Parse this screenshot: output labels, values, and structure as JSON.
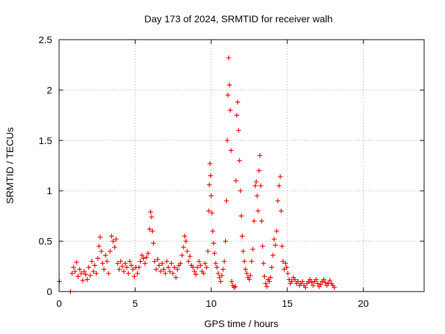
{
  "chart_data": {
    "type": "scatter",
    "title": "Day 173 of 2024, SRMTID for receiver walh",
    "xlabel": "GPS time / hours",
    "ylabel": "SRMTID / TECUs",
    "xlim": [
      0,
      24
    ],
    "ylim": [
      0,
      2.5
    ],
    "xticks": [
      0,
      5,
      10,
      15,
      20
    ],
    "xtick_labels": [
      "0",
      "5",
      "10",
      "15",
      "20"
    ],
    "yticks": [
      0,
      0.5,
      1,
      1.5,
      2,
      2.5
    ],
    "ytick_labels": [
      "0",
      "0.5",
      "1",
      "1.5",
      "2",
      "2.5"
    ],
    "grid": true,
    "marker": "plus",
    "color": "#ff0000",
    "series": [
      {
        "name": "SRMTID",
        "points": [
          [
            0.02,
            0.1
          ],
          [
            0.75,
            0.0
          ],
          [
            0.85,
            0.18
          ],
          [
            0.95,
            0.24
          ],
          [
            1.05,
            0.2
          ],
          [
            1.15,
            0.29
          ],
          [
            1.25,
            0.15
          ],
          [
            1.35,
            0.22
          ],
          [
            1.45,
            0.18
          ],
          [
            1.55,
            0.11
          ],
          [
            1.65,
            0.2
          ],
          [
            1.75,
            0.17
          ],
          [
            1.85,
            0.12
          ],
          [
            1.95,
            0.24
          ],
          [
            2.05,
            0.16
          ],
          [
            2.15,
            0.3
          ],
          [
            2.25,
            0.2
          ],
          [
            2.35,
            0.26
          ],
          [
            2.45,
            0.18
          ],
          [
            2.55,
            0.33
          ],
          [
            2.62,
            0.45
          ],
          [
            2.7,
            0.54
          ],
          [
            2.78,
            0.4
          ],
          [
            2.86,
            0.28
          ],
          [
            2.95,
            0.22
          ],
          [
            3.05,
            0.36
          ],
          [
            3.15,
            0.3
          ],
          [
            3.25,
            0.18
          ],
          [
            3.35,
            0.4
          ],
          [
            3.45,
            0.55
          ],
          [
            3.55,
            0.5
          ],
          [
            3.65,
            0.44
          ],
          [
            3.75,
            0.52
          ],
          [
            3.85,
            0.28
          ],
          [
            3.95,
            0.22
          ],
          [
            4.05,
            0.3
          ],
          [
            4.15,
            0.25
          ],
          [
            4.25,
            0.2
          ],
          [
            4.35,
            0.28
          ],
          [
            4.45,
            0.24
          ],
          [
            4.55,
            0.18
          ],
          [
            4.65,
            0.3
          ],
          [
            4.75,
            0.26
          ],
          [
            4.85,
            0.22
          ],
          [
            4.95,
            0.15
          ],
          [
            5.05,
            0.24
          ],
          [
            5.15,
            0.18
          ],
          [
            5.25,
            0.24
          ],
          [
            5.35,
            0.3
          ],
          [
            5.45,
            0.36
          ],
          [
            5.55,
            0.33
          ],
          [
            5.65,
            0.28
          ],
          [
            5.75,
            0.34
          ],
          [
            5.85,
            0.38
          ],
          [
            5.95,
            0.62
          ],
          [
            6.02,
            0.79
          ],
          [
            6.08,
            0.74
          ],
          [
            6.14,
            0.6
          ],
          [
            6.2,
            0.48
          ],
          [
            6.28,
            0.3
          ],
          [
            6.38,
            0.22
          ],
          [
            6.48,
            0.32
          ],
          [
            6.58,
            0.26
          ],
          [
            6.68,
            0.2
          ],
          [
            6.78,
            0.28
          ],
          [
            6.88,
            0.22
          ],
          [
            6.98,
            0.18
          ],
          [
            7.08,
            0.3
          ],
          [
            7.18,
            0.24
          ],
          [
            7.28,
            0.2
          ],
          [
            7.38,
            0.28
          ],
          [
            7.48,
            0.18
          ],
          [
            7.58,
            0.24
          ],
          [
            7.68,
            0.14
          ],
          [
            7.78,
            0.22
          ],
          [
            7.88,
            0.26
          ],
          [
            7.98,
            0.28
          ],
          [
            8.08,
            0.36
          ],
          [
            8.18,
            0.44
          ],
          [
            8.26,
            0.55
          ],
          [
            8.34,
            0.5
          ],
          [
            8.42,
            0.4
          ],
          [
            8.5,
            0.3
          ],
          [
            8.6,
            0.35
          ],
          [
            8.7,
            0.26
          ],
          [
            8.8,
            0.24
          ],
          [
            8.9,
            0.2
          ],
          [
            9.0,
            0.17
          ],
          [
            9.1,
            0.24
          ],
          [
            9.2,
            0.3
          ],
          [
            9.3,
            0.26
          ],
          [
            9.4,
            0.2
          ],
          [
            9.5,
            0.18
          ],
          [
            9.6,
            0.28
          ],
          [
            9.7,
            0.24
          ],
          [
            9.78,
            0.4
          ],
          [
            9.84,
            0.8
          ],
          [
            9.88,
            1.06
          ],
          [
            9.92,
            1.27
          ],
          [
            9.96,
            1.15
          ],
          [
            10.0,
            0.95
          ],
          [
            10.05,
            0.78
          ],
          [
            10.1,
            0.6
          ],
          [
            10.16,
            0.48
          ],
          [
            10.22,
            0.38
          ],
          [
            10.3,
            0.28
          ],
          [
            10.38,
            0.24
          ],
          [
            10.46,
            0.18
          ],
          [
            10.54,
            0.14
          ],
          [
            10.62,
            0.1
          ],
          [
            10.7,
            0.16
          ],
          [
            10.78,
            0.22
          ],
          [
            10.86,
            0.3
          ],
          [
            10.94,
            0.5
          ],
          [
            11.0,
            0.9
          ],
          [
            11.05,
            1.5
          ],
          [
            11.1,
            1.95
          ],
          [
            11.15,
            2.32
          ],
          [
            11.2,
            2.05
          ],
          [
            11.25,
            1.8
          ],
          [
            11.3,
            1.4
          ],
          [
            11.35,
            0.1
          ],
          [
            11.42,
            0.06
          ],
          [
            11.5,
            0.04
          ],
          [
            11.58,
            0.05
          ],
          [
            11.62,
            1.1
          ],
          [
            11.68,
            1.75
          ],
          [
            11.74,
            1.88
          ],
          [
            11.8,
            1.6
          ],
          [
            11.86,
            1.3
          ],
          [
            11.92,
            1.0
          ],
          [
            11.98,
            0.75
          ],
          [
            12.04,
            0.55
          ],
          [
            12.1,
            0.4
          ],
          [
            12.18,
            0.3
          ],
          [
            12.26,
            0.22
          ],
          [
            12.34,
            0.18
          ],
          [
            12.42,
            0.14
          ],
          [
            12.5,
            0.12
          ],
          [
            12.58,
            0.16
          ],
          [
            12.66,
            0.3
          ],
          [
            12.74,
            0.42
          ],
          [
            12.82,
            0.7
          ],
          [
            12.9,
            1.05
          ],
          [
            12.96,
            1.09
          ],
          [
            13.02,
            0.95
          ],
          [
            13.08,
            0.8
          ],
          [
            13.14,
            1.2
          ],
          [
            13.2,
            1.35
          ],
          [
            13.26,
            1.05
          ],
          [
            13.32,
            0.7
          ],
          [
            13.38,
            0.45
          ],
          [
            13.44,
            0.28
          ],
          [
            13.5,
            0.15
          ],
          [
            13.58,
            0.08
          ],
          [
            13.66,
            0.05
          ],
          [
            13.74,
            0.12
          ],
          [
            13.82,
            0.1
          ],
          [
            13.9,
            0.14
          ],
          [
            13.98,
            0.24
          ],
          [
            14.06,
            0.36
          ],
          [
            14.14,
            0.52
          ],
          [
            14.22,
            0.46
          ],
          [
            14.3,
            0.6
          ],
          [
            14.38,
            0.9
          ],
          [
            14.46,
            1.05
          ],
          [
            14.54,
            1.14
          ],
          [
            14.6,
            0.8
          ],
          [
            14.66,
            0.45
          ],
          [
            14.72,
            0.3
          ],
          [
            14.8,
            0.22
          ],
          [
            14.88,
            0.28
          ],
          [
            14.96,
            0.24
          ],
          [
            15.04,
            0.18
          ],
          [
            15.12,
            0.12
          ],
          [
            15.2,
            0.08
          ],
          [
            15.3,
            0.1
          ],
          [
            15.4,
            0.14
          ],
          [
            15.5,
            0.12
          ],
          [
            15.6,
            0.08
          ],
          [
            15.7,
            0.1
          ],
          [
            15.8,
            0.06
          ],
          [
            15.9,
            0.08
          ],
          [
            16.0,
            0.1
          ],
          [
            16.1,
            0.06
          ],
          [
            16.2,
            0.04
          ],
          [
            16.3,
            0.08
          ],
          [
            16.4,
            0.1
          ],
          [
            16.5,
            0.12
          ],
          [
            16.6,
            0.09
          ],
          [
            16.7,
            0.06
          ],
          [
            16.8,
            0.1
          ],
          [
            16.9,
            0.12
          ],
          [
            17.0,
            0.08
          ],
          [
            17.1,
            0.05
          ],
          [
            17.2,
            0.07
          ],
          [
            17.3,
            0.1
          ],
          [
            17.4,
            0.12
          ],
          [
            17.5,
            0.09
          ],
          [
            17.6,
            0.06
          ],
          [
            17.7,
            0.08
          ],
          [
            17.8,
            0.11
          ],
          [
            17.9,
            0.08
          ],
          [
            18.0,
            0.06
          ],
          [
            18.1,
            0.04
          ]
        ]
      }
    ]
  }
}
